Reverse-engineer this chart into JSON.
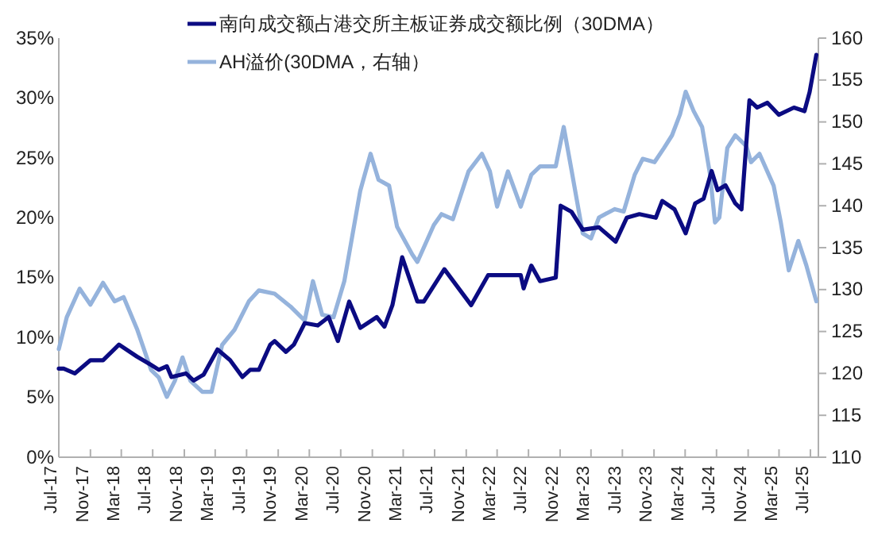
{
  "chart_data": {
    "type": "line",
    "xlim": [
      "2017-07-01",
      "2025-08-01"
    ],
    "xticks": [
      {
        "value": "2017-07-01",
        "label": "Jul-17"
      },
      {
        "value": "2017-11-01",
        "label": "Nov-17"
      },
      {
        "value": "2018-03-01",
        "label": "Mar-18"
      },
      {
        "value": "2018-07-01",
        "label": "Jul-18"
      },
      {
        "value": "2018-11-01",
        "label": "Nov-18"
      },
      {
        "value": "2019-03-01",
        "label": "Mar-19"
      },
      {
        "value": "2019-07-01",
        "label": "Jul-19"
      },
      {
        "value": "2019-11-01",
        "label": "Nov-19"
      },
      {
        "value": "2020-03-01",
        "label": "Mar-20"
      },
      {
        "value": "2020-07-01",
        "label": "Jul-20"
      },
      {
        "value": "2020-11-01",
        "label": "Nov-20"
      },
      {
        "value": "2021-03-01",
        "label": "Mar-21"
      },
      {
        "value": "2021-07-01",
        "label": "Jul-21"
      },
      {
        "value": "2021-11-01",
        "label": "Nov-21"
      },
      {
        "value": "2022-03-01",
        "label": "Mar-22"
      },
      {
        "value": "2022-07-01",
        "label": "Jul-22"
      },
      {
        "value": "2022-11-01",
        "label": "Nov-22"
      },
      {
        "value": "2023-03-01",
        "label": "Mar-23"
      },
      {
        "value": "2023-07-01",
        "label": "Jul-23"
      },
      {
        "value": "2023-11-01",
        "label": "Nov-23"
      },
      {
        "value": "2024-03-01",
        "label": "Mar-24"
      },
      {
        "value": "2024-07-01",
        "label": "Jul-24"
      },
      {
        "value": "2024-11-01",
        "label": "Nov-24"
      },
      {
        "value": "2025-03-01",
        "label": "Mar-25"
      },
      {
        "value": "2025-07-01",
        "label": "Jul-25"
      }
    ],
    "ylim": [
      0,
      35
    ],
    "yticks": [
      {
        "value": 0,
        "label": "0%"
      },
      {
        "value": 5,
        "label": "5%"
      },
      {
        "value": 10,
        "label": "10%"
      },
      {
        "value": 15,
        "label": "15%"
      },
      {
        "value": 20,
        "label": "20%"
      },
      {
        "value": 25,
        "label": "25%"
      },
      {
        "value": 30,
        "label": "30%"
      },
      {
        "value": 35,
        "label": "35%"
      }
    ],
    "y2lim": [
      110,
      160
    ],
    "y2ticks": [
      110,
      115,
      120,
      125,
      130,
      135,
      140,
      145,
      150,
      155,
      160
    ],
    "grid": false,
    "legend": "top left",
    "series": [
      {
        "name": "南向成交额占港交所主板证券成交额比例（30DMA）",
        "color": "#0b0b82",
        "axis": "y",
        "x": [
          "2017-07-01",
          "2017-07-20",
          "2017-09-01",
          "2017-11-01",
          "2017-12-20",
          "2018-02-20",
          "2018-05-01",
          "2018-06-25",
          "2018-07-25",
          "2018-08-25",
          "2018-09-12",
          "2018-11-07",
          "2018-12-07",
          "2019-01-15",
          "2019-03-10",
          "2019-04-28",
          "2019-06-15",
          "2019-07-15",
          "2019-08-18",
          "2019-10-01",
          "2019-10-18",
          "2019-12-01",
          "2020-01-01",
          "2020-02-12",
          "2020-04-03",
          "2020-05-15",
          "2020-06-20",
          "2020-08-03",
          "2020-09-15",
          "2020-11-18",
          "2020-12-18",
          "2021-01-18",
          "2021-02-25",
          "2021-04-25",
          "2021-05-20",
          "2021-08-08",
          "2021-11-20",
          "2022-01-25",
          "2022-06-01",
          "2022-06-12",
          "2022-07-12",
          "2022-08-15",
          "2022-10-15",
          "2022-11-03",
          "2022-12-15",
          "2023-01-28",
          "2023-04-01",
          "2023-06-05",
          "2023-07-18",
          "2023-09-05",
          "2023-11-08",
          "2023-12-03",
          "2024-01-20",
          "2024-03-03",
          "2024-04-09",
          "2024-05-12",
          "2024-06-12",
          "2024-07-05",
          "2024-08-05",
          "2024-09-12",
          "2024-10-06",
          "2024-11-06",
          "2024-12-06",
          "2025-01-15",
          "2025-02-28",
          "2025-04-28",
          "2025-06-08",
          "2025-06-28",
          "2025-07-24"
        ],
        "values": [
          7.4,
          7.4,
          7.0,
          8.1,
          8.1,
          9.4,
          8.4,
          7.7,
          7.3,
          7.6,
          6.7,
          7.0,
          6.4,
          6.9,
          9.0,
          8.1,
          6.7,
          7.3,
          7.3,
          9.4,
          9.7,
          8.8,
          9.4,
          11.2,
          11.0,
          11.7,
          9.7,
          13.0,
          10.8,
          11.7,
          10.9,
          12.7,
          16.7,
          13.0,
          13.0,
          15.7,
          12.7,
          15.2,
          15.2,
          14.1,
          16.0,
          14.7,
          15.0,
          21.0,
          20.5,
          19.0,
          19.2,
          18.0,
          20.0,
          20.3,
          20.0,
          21.4,
          20.7,
          18.7,
          21.2,
          21.6,
          23.9,
          22.3,
          22.7,
          21.2,
          20.7,
          29.8,
          29.2,
          29.6,
          28.6,
          29.2,
          28.9,
          30.5,
          33.6
        ]
      },
      {
        "name": "AH溢价(30DMA，右轴）",
        "color": "#95b3dc",
        "axis": "y2",
        "x": [
          "2017-07-01",
          "2017-08-01",
          "2017-09-20",
          "2017-11-01",
          "2017-12-20",
          "2018-02-03",
          "2018-03-10",
          "2018-05-01",
          "2018-06-25",
          "2018-07-25",
          "2018-08-25",
          "2018-09-25",
          "2018-10-25",
          "2018-11-25",
          "2019-01-10",
          "2019-02-15",
          "2019-03-28",
          "2019-05-15",
          "2019-07-10",
          "2019-08-18",
          "2019-10-18",
          "2019-12-18",
          "2020-02-12",
          "2020-03-15",
          "2020-04-20",
          "2020-06-03",
          "2020-07-15",
          "2020-09-15",
          "2020-10-25",
          "2020-11-25",
          "2021-01-05",
          "2021-02-05",
          "2021-04-05",
          "2021-04-25",
          "2021-06-28",
          "2021-07-28",
          "2021-09-10",
          "2021-11-10",
          "2022-01-01",
          "2022-02-01",
          "2022-03-01",
          "2022-04-12",
          "2022-06-01",
          "2022-07-12",
          "2022-08-15",
          "2022-10-15",
          "2022-11-15",
          "2022-12-15",
          "2023-01-28",
          "2023-03-01",
          "2023-04-01",
          "2023-06-01",
          "2023-07-06",
          "2023-08-18",
          "2023-09-18",
          "2023-11-03",
          "2023-12-10",
          "2024-01-10",
          "2024-02-10",
          "2024-03-03",
          "2024-04-03",
          "2024-05-06",
          "2024-06-06",
          "2024-06-25",
          "2024-07-12",
          "2024-08-12",
          "2024-09-12",
          "2024-10-25",
          "2024-11-12",
          "2024-12-15",
          "2025-02-08",
          "2025-03-08",
          "2025-04-08",
          "2025-05-15",
          "2025-06-15",
          "2025-07-24"
        ],
        "values": [
          122.9,
          126.7,
          130.1,
          128.2,
          130.8,
          128.6,
          129.1,
          125.3,
          120.4,
          119.5,
          117.2,
          119.1,
          121.9,
          119.1,
          117.8,
          117.8,
          123.4,
          125.2,
          128.6,
          129.9,
          129.5,
          128.0,
          126.3,
          131.0,
          127.0,
          126.7,
          131.0,
          141.8,
          146.2,
          143.1,
          142.4,
          137.5,
          134.2,
          133.3,
          137.7,
          139.0,
          138.4,
          144.1,
          146.2,
          144.1,
          139.9,
          144.1,
          139.9,
          143.7,
          144.7,
          144.7,
          149.4,
          144.3,
          136.7,
          136.1,
          138.6,
          139.6,
          139.3,
          143.7,
          145.6,
          145.2,
          146.9,
          148.4,
          150.9,
          153.6,
          151.3,
          149.4,
          143.7,
          138.0,
          138.6,
          146.9,
          148.4,
          147.1,
          145.2,
          146.2,
          142.4,
          138.0,
          132.3,
          135.8,
          132.9,
          128.6
        ]
      }
    ]
  }
}
